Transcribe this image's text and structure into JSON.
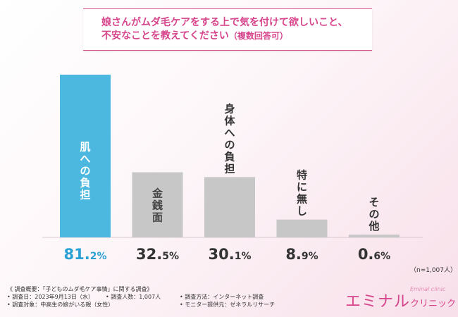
{
  "title_line1": "娘さんがムダ毛ケアをする上で気を付けて欲しいこと、",
  "title_line2_main": "不安なことを教えてください",
  "title_line2_sub": "（複数回答可）",
  "sample_note": "（n=1,007人）",
  "survey": {
    "heading": "《 調査概要：「子どものムダ毛ケア事情」に関する調査》",
    "date": "• 調査日：2023年9月13日（水）",
    "count": "• 調査人数：1,007人",
    "method": "• 調査方法：インターネット調査",
    "target": "• 調査対象：中高生の娘がいる親（女性）",
    "provider": "• モニター提供元：ゼネラルリサーチ"
  },
  "logo": {
    "main": "エミナル",
    "clinic": "クリニック",
    "en": "Eminal clinic"
  },
  "colors": {
    "highlight_bar": "#4cb8df",
    "normal_bar": "#c7c7c7",
    "highlight_text": "#2aa1d3",
    "normal_text": "#333333",
    "title": "#d6448b"
  },
  "chart_data": {
    "type": "bar",
    "categories": [
      "肌への負担",
      "金銭面",
      "身体への負担",
      "特に無し",
      "その他"
    ],
    "values": [
      81.2,
      32.5,
      30.1,
      8.9,
      0.6
    ],
    "value_int": [
      "81.",
      "32.",
      "30.",
      "8.",
      "0."
    ],
    "value_dec": [
      "2%",
      "5%",
      "1%",
      "9%",
      "6%"
    ],
    "highlight_index": 0,
    "ylim": [
      0,
      81.2
    ]
  }
}
